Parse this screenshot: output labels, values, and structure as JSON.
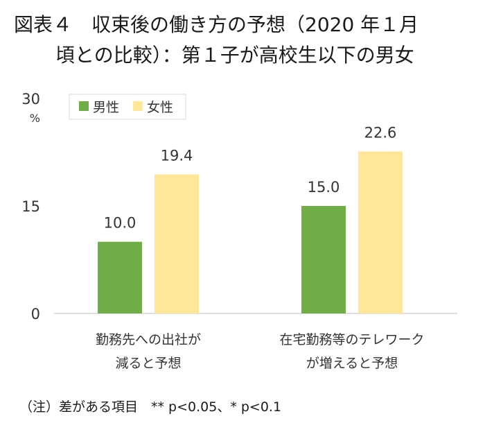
{
  "title": {
    "line1": "図表４　収束後の働き方の予想（2020 年１月",
    "line2": "頃との比較）：第１子が高校生以下の男女"
  },
  "note": "（注）差がある項目　** p<0.05、* p<0.1",
  "colors": {
    "male": "#70ad47",
    "female": "#ffe699",
    "axis": "#bfbfbf",
    "text": "#333333"
  },
  "chart_data": {
    "type": "bar",
    "categories": [
      [
        "勤務先への出社が",
        "減ると予想"
      ],
      [
        "在宅勤務等のテレワーク",
        "が増えると予想"
      ]
    ],
    "series": [
      {
        "name": "男性",
        "values": [
          10.0,
          15.0
        ],
        "labels": [
          "10.0",
          "15.0"
        ]
      },
      {
        "name": "女性",
        "values": [
          19.4,
          22.6
        ],
        "labels": [
          "19.4",
          "22.6"
        ]
      }
    ],
    "ylim": [
      0,
      30
    ],
    "yticks": [
      "0",
      "15",
      "30"
    ],
    "yunit": "%",
    "legend_position": "top-left"
  }
}
